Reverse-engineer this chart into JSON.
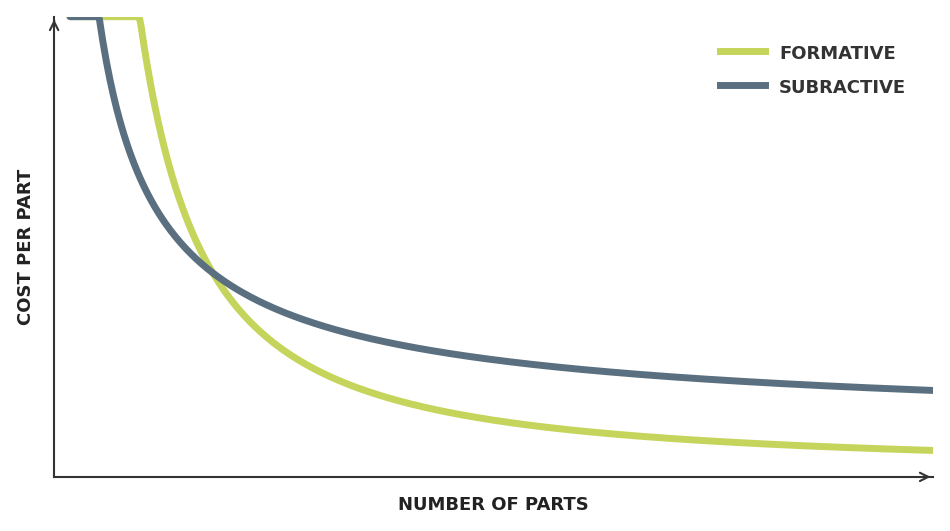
{
  "title": "",
  "xlabel": "NUMBER OF PARTS",
  "ylabel": "COST PER PART",
  "background_color": "#ffffff",
  "grid_color": "#cccccc",
  "formative_color": "#c5d45a",
  "subtractive_color": "#5a7080",
  "formative_label": "FORMATIVE",
  "subtractive_label": "SUBRACTIVE",
  "xlim": [
    0,
    10
  ],
  "ylim": [
    0,
    10
  ],
  "line_width": 5,
  "xlabel_fontsize": 13,
  "ylabel_fontsize": 13,
  "legend_fontsize": 13
}
